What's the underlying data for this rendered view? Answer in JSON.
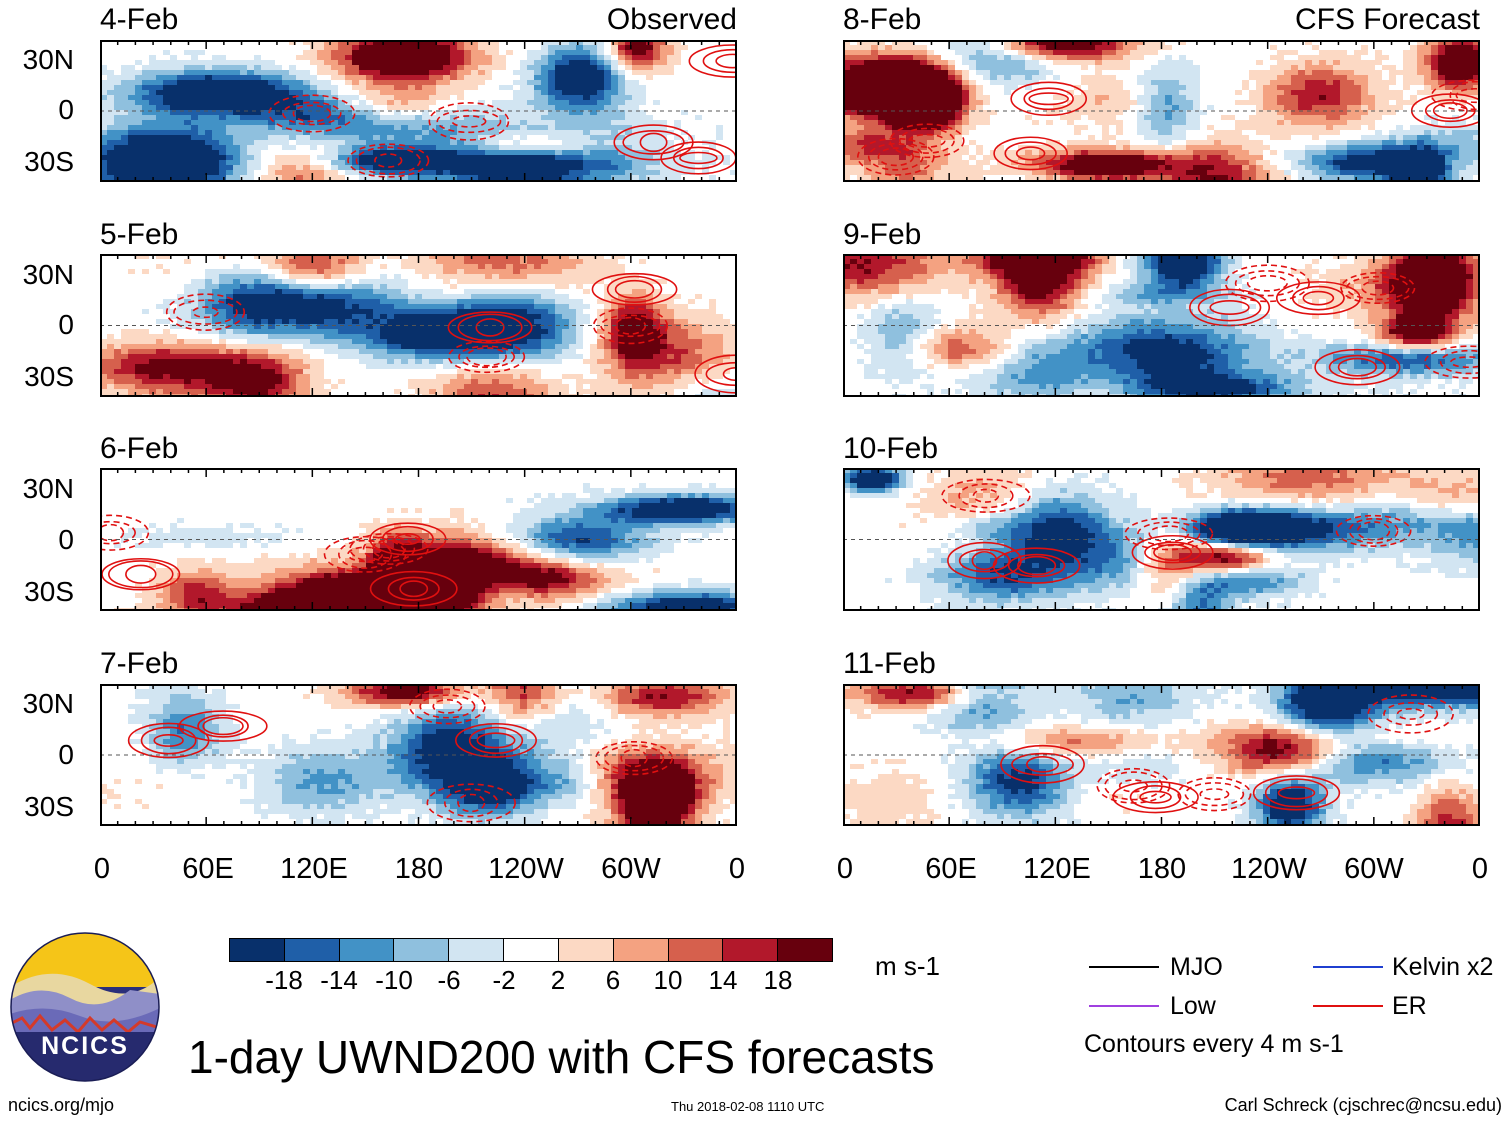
{
  "figure": {
    "title": "1-day UWND200 with CFS forecasts",
    "website": "ncics.org/mjo",
    "timestamp": "Thu 2018-02-08 1110 UTC",
    "author": "Carl Schreck (cjschrec@ncsu.edu)",
    "logo_text": "NCICS"
  },
  "chart_data": {
    "type": "heatmap",
    "variable": "200-hPa zonal wind anomaly",
    "units": "m s-1",
    "column_labels": [
      "Observed",
      "CFS Forecast"
    ],
    "y_tick_labels": [
      "30N",
      "0",
      "30S"
    ],
    "x_tick_labels": [
      "0",
      "60E",
      "120E",
      "180",
      "120W",
      "60W",
      "0"
    ],
    "panels": [
      {
        "date": "4-Feb",
        "source": "Observed",
        "seed": 11
      },
      {
        "date": "5-Feb",
        "source": "Observed",
        "seed": 23
      },
      {
        "date": "6-Feb",
        "source": "Observed",
        "seed": 37
      },
      {
        "date": "7-Feb",
        "source": "Observed",
        "seed": 41
      },
      {
        "date": "8-Feb",
        "source": "CFS Forecast",
        "seed": 53
      },
      {
        "date": "9-Feb",
        "source": "CFS Forecast",
        "seed": 67
      },
      {
        "date": "10-Feb",
        "source": "CFS Forecast",
        "seed": 71
      },
      {
        "date": "11-Feb",
        "source": "CFS Forecast",
        "seed": 89
      }
    ],
    "colorbar": {
      "tick_labels": [
        "-18",
        "-14",
        "-10",
        "-6",
        "-2",
        "2",
        "6",
        "10",
        "14",
        "18"
      ],
      "colors": [
        "#08306b",
        "#1f5fa8",
        "#4292c6",
        "#8fc0de",
        "#d2e5f2",
        "#ffffff",
        "#fcd9c4",
        "#f4a281",
        "#d6604d",
        "#b2182b",
        "#67000d"
      ],
      "units_label": "m s-1"
    },
    "legend": [
      {
        "label": "MJO",
        "color": "#000000"
      },
      {
        "label": "Kelvin x2",
        "color": "#1f3fd0"
      },
      {
        "label": "Low",
        "color": "#a040e0"
      },
      {
        "label": "ER",
        "color": "#e01010"
      }
    ],
    "contour_note": "Contours every 4 m s-1"
  }
}
